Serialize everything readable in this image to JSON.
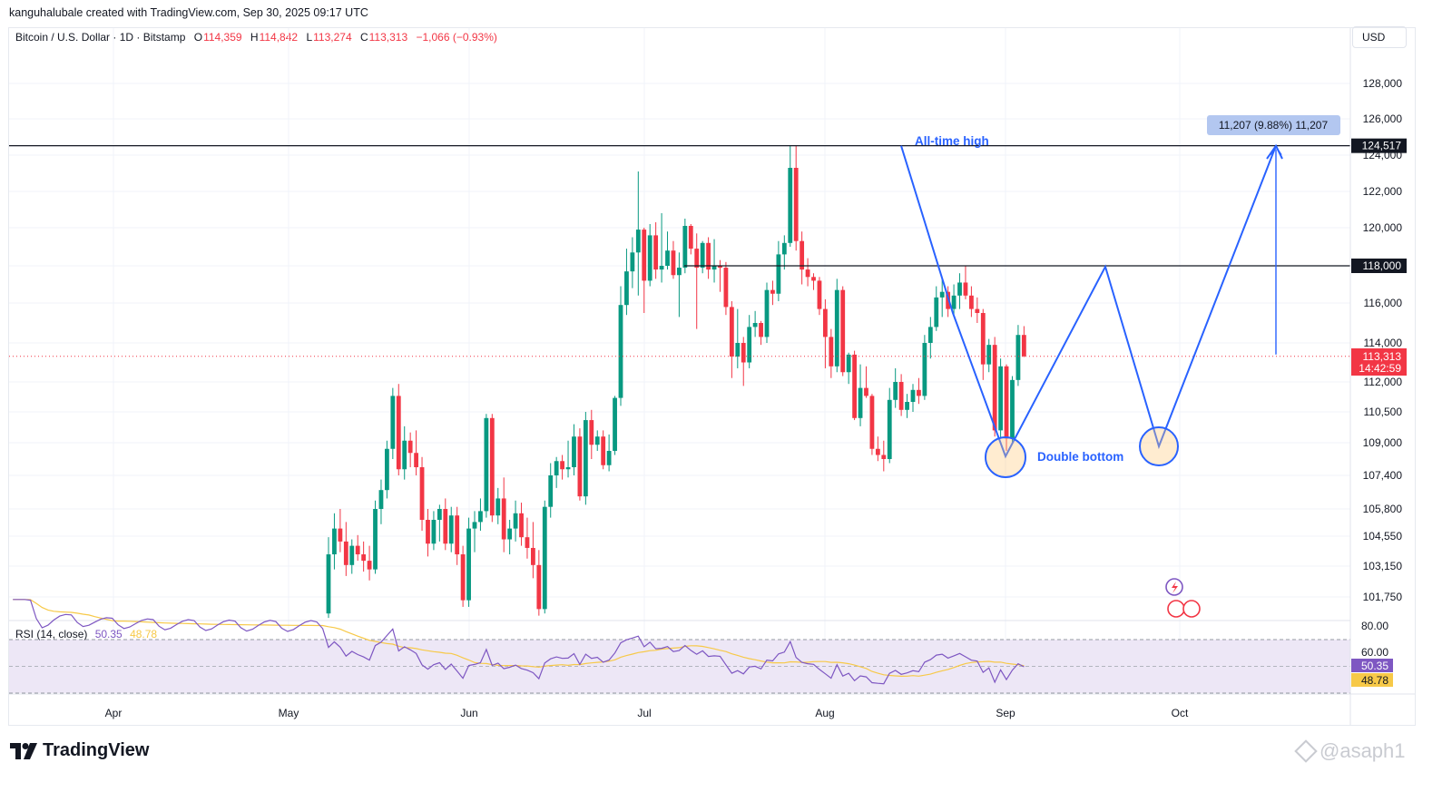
{
  "header": {
    "credit": "kanguhalubale created with TradingView.com, Sep 30, 2025 09:17 UTC"
  },
  "legend": {
    "symbol": "Bitcoin / U.S. Dollar · 1D · Bitstamp",
    "o_label": "O",
    "o_value": "114,359",
    "h_label": "H",
    "h_value": "114,842",
    "l_label": "L",
    "l_value": "113,274",
    "c_label": "C",
    "c_value": "113,313",
    "change": "−1,066 (−0.93%)"
  },
  "currency_button": "USD",
  "price_axis": {
    "ticks": [
      "128,000",
      "126,000",
      "124,000",
      "122,000",
      "120,000",
      "118,000",
      "116,000",
      "114,000",
      "112,000",
      "110,500",
      "109,000",
      "107,400",
      "105,800",
      "104,550",
      "103,150",
      "101,750"
    ],
    "tag_ath": "124,517",
    "tag_resistance": "118,000",
    "tag_last_price": "113,313",
    "tag_countdown": "14:42:59",
    "colors": {
      "black_tag": "#131722",
      "red_tag": "#f23645"
    }
  },
  "rsi_axis": {
    "ticks": [
      "80.00",
      "60.00"
    ],
    "tag_rsi": "50.35",
    "tag_ma": "48.78"
  },
  "time_axis": [
    "Apr",
    "May",
    "Jun",
    "Jul",
    "Aug",
    "Sep",
    "Oct"
  ],
  "annotations": {
    "ath_label": "All-time high",
    "double_bottom_label": "Double bottom",
    "measure_label": "11,207 (9.88%) 11,207"
  },
  "rsi_legend": {
    "label": "RSI (14, close)",
    "rsi_value": "50.35",
    "ma_value": "48.78"
  },
  "footer": {
    "brand": "TradingView",
    "watermark": "@asaph1"
  },
  "colors": {
    "up": "#089981",
    "down": "#f23645",
    "annotation": "#2962ff",
    "rsi_line": "#7e57c2",
    "rsi_ma": "#f7c948",
    "rsi_band": "#ede7f6"
  },
  "chart_data": {
    "type": "candlestick",
    "title": "Bitcoin / U.S. Dollar · 1D · Bitstamp",
    "x_range": [
      "2025-05-09",
      "2025-09-30"
    ],
    "ylim": [
      100800,
      129700
    ],
    "levels": {
      "all_time_high": 124517,
      "resistance": 118000,
      "last_price": 113313
    },
    "measure": {
      "from": 113310,
      "to": 124517,
      "change": 11207,
      "percent": 9.88
    },
    "series": [
      {
        "name": "BTCUSD",
        "ohlc": [
          [
            101000,
            104500,
            100800,
            103700
          ],
          [
            103700,
            105600,
            103000,
            104900
          ],
          [
            104900,
            105800,
            103800,
            104300
          ],
          [
            104300,
            105200,
            102700,
            103200
          ],
          [
            103200,
            104400,
            102800,
            104100
          ],
          [
            104100,
            104600,
            103400,
            103700
          ],
          [
            103700,
            104300,
            102900,
            103400
          ],
          [
            103400,
            104100,
            102500,
            103000
          ],
          [
            103000,
            106200,
            102800,
            105800
          ],
          [
            105800,
            107200,
            105100,
            106700
          ],
          [
            106700,
            109100,
            106300,
            108700
          ],
          [
            108700,
            111700,
            108200,
            111300
          ],
          [
            111300,
            111900,
            107400,
            107700
          ],
          [
            107700,
            109800,
            107200,
            109100
          ],
          [
            109100,
            109500,
            107800,
            108500
          ],
          [
            108500,
            109600,
            107400,
            107800
          ],
          [
            107800,
            108300,
            104800,
            105300
          ],
          [
            105300,
            105800,
            103600,
            104200
          ],
          [
            104200,
            105700,
            103900,
            105300
          ],
          [
            105300,
            106000,
            104300,
            105800
          ],
          [
            105800,
            106300,
            103900,
            104200
          ],
          [
            104200,
            105900,
            103800,
            105500
          ],
          [
            105500,
            105900,
            103200,
            103700
          ],
          [
            103700,
            104100,
            101300,
            101600
          ],
          [
            101600,
            105400,
            101300,
            104900
          ],
          [
            104900,
            105700,
            103800,
            105200
          ],
          [
            105200,
            106300,
            104800,
            105700
          ],
          [
            105700,
            110400,
            105400,
            110200
          ],
          [
            110200,
            110400,
            105200,
            105500
          ],
          [
            105500,
            106800,
            105100,
            106300
          ],
          [
            106300,
            107300,
            103800,
            104400
          ],
          [
            104400,
            105300,
            103700,
            104900
          ],
          [
            104900,
            106200,
            104300,
            105600
          ],
          [
            105600,
            106100,
            104100,
            104500
          ],
          [
            104500,
            105400,
            103500,
            104000
          ],
          [
            104000,
            105200,
            102600,
            103200
          ],
          [
            103200,
            103900,
            100900,
            101200
          ],
          [
            101200,
            106200,
            101000,
            105900
          ],
          [
            105900,
            108000,
            105400,
            107400
          ],
          [
            107400,
            108300,
            106800,
            108100
          ],
          [
            108100,
            108400,
            107200,
            107700
          ],
          [
            107700,
            109100,
            107300,
            107800
          ],
          [
            107800,
            109900,
            107400,
            109300
          ],
          [
            109300,
            109700,
            106200,
            106400
          ],
          [
            106400,
            110500,
            106000,
            110100
          ],
          [
            110100,
            110600,
            108200,
            108900
          ],
          [
            108900,
            109600,
            108600,
            109300
          ],
          [
            109300,
            109600,
            107700,
            107900
          ],
          [
            107900,
            109400,
            107600,
            108600
          ],
          [
            108600,
            111300,
            108400,
            111200
          ],
          [
            111200,
            116900,
            110800,
            115900
          ],
          [
            115900,
            118900,
            115400,
            117700
          ],
          [
            117700,
            119500,
            116800,
            118700
          ],
          [
            118700,
            123100,
            116400,
            119900
          ],
          [
            119900,
            120000,
            115500,
            117200
          ],
          [
            117200,
            120200,
            116900,
            119600
          ],
          [
            119600,
            120300,
            117300,
            117800
          ],
          [
            117800,
            120800,
            117100,
            118000
          ],
          [
            118000,
            119800,
            117800,
            118800
          ],
          [
            118800,
            119300,
            117300,
            117500
          ],
          [
            117500,
            118700,
            115300,
            117900
          ],
          [
            117900,
            120500,
            117600,
            120100
          ],
          [
            120100,
            120200,
            118600,
            118900
          ],
          [
            118900,
            119700,
            114700,
            117900
          ],
          [
            117900,
            119300,
            117600,
            119200
          ],
          [
            119200,
            119500,
            117300,
            117800
          ],
          [
            117800,
            119400,
            117100,
            118000
          ],
          [
            118000,
            118300,
            116600,
            117900
          ],
          [
            117900,
            118200,
            115400,
            115800
          ],
          [
            115800,
            116100,
            112200,
            113300
          ],
          [
            113300,
            115700,
            112700,
            114000
          ],
          [
            114000,
            114300,
            111800,
            113000
          ],
          [
            113000,
            115400,
            112700,
            114800
          ],
          [
            114800,
            115600,
            114300,
            115000
          ],
          [
            115000,
            115100,
            113900,
            114300
          ],
          [
            114300,
            117100,
            114000,
            116700
          ],
          [
            116700,
            117200,
            115900,
            116500
          ],
          [
            116500,
            119300,
            116100,
            118600
          ],
          [
            118600,
            119600,
            117800,
            119200
          ],
          [
            119200,
            124500,
            119000,
            123300
          ],
          [
            123300,
            124517,
            118800,
            119300
          ],
          [
            119300,
            119800,
            117000,
            117800
          ],
          [
            117800,
            118400,
            116900,
            117400
          ],
          [
            117400,
            117600,
            116700,
            117200
          ],
          [
            117200,
            117400,
            115400,
            115700
          ],
          [
            115700,
            116200,
            112700,
            114300
          ],
          [
            114300,
            114700,
            112200,
            112800
          ],
          [
            112800,
            117300,
            112500,
            116700
          ],
          [
            116700,
            116900,
            112300,
            112500
          ],
          [
            112500,
            113500,
            111900,
            113400
          ],
          [
            113400,
            113600,
            110100,
            110200
          ],
          [
            110200,
            112900,
            109800,
            111700
          ],
          [
            111700,
            112800,
            111200,
            111300
          ],
          [
            111300,
            111400,
            108400,
            108700
          ],
          [
            108700,
            109300,
            108100,
            108400
          ],
          [
            108400,
            109100,
            107600,
            108200
          ],
          [
            108200,
            111700,
            108000,
            111100
          ],
          [
            111100,
            112700,
            110700,
            112000
          ],
          [
            112000,
            112400,
            110300,
            110600
          ],
          [
            110600,
            111400,
            110200,
            111000
          ],
          [
            111000,
            111900,
            110500,
            111600
          ],
          [
            111600,
            112200,
            110900,
            111300
          ],
          [
            111300,
            114400,
            111100,
            114000
          ],
          [
            114000,
            115300,
            113200,
            114800
          ],
          [
            114800,
            116900,
            114600,
            116300
          ],
          [
            116300,
            117300,
            115300,
            116600
          ],
          [
            116600,
            116900,
            115300,
            115700
          ],
          [
            115700,
            117000,
            115400,
            116400
          ],
          [
            116400,
            117600,
            115700,
            117100
          ],
          [
            117100,
            118000,
            116200,
            116400
          ],
          [
            116400,
            116900,
            115300,
            115700
          ],
          [
            115700,
            116300,
            115000,
            115500
          ],
          [
            115500,
            115700,
            112100,
            112900
          ],
          [
            112900,
            114200,
            112500,
            113900
          ],
          [
            113900,
            114300,
            109300,
            109600
          ],
          [
            109600,
            113200,
            109200,
            112800
          ],
          [
            112800,
            112900,
            108600,
            109200
          ],
          [
            109200,
            112300,
            109000,
            112100
          ],
          [
            112100,
            114900,
            111800,
            114400
          ],
          [
            114400,
            114842,
            113274,
            113313
          ]
        ]
      }
    ],
    "rsi": {
      "name": "RSI (14, close)",
      "period": 14,
      "last": 50.35,
      "ma_last": 48.78,
      "upper": 70,
      "lower": 30
    }
  }
}
